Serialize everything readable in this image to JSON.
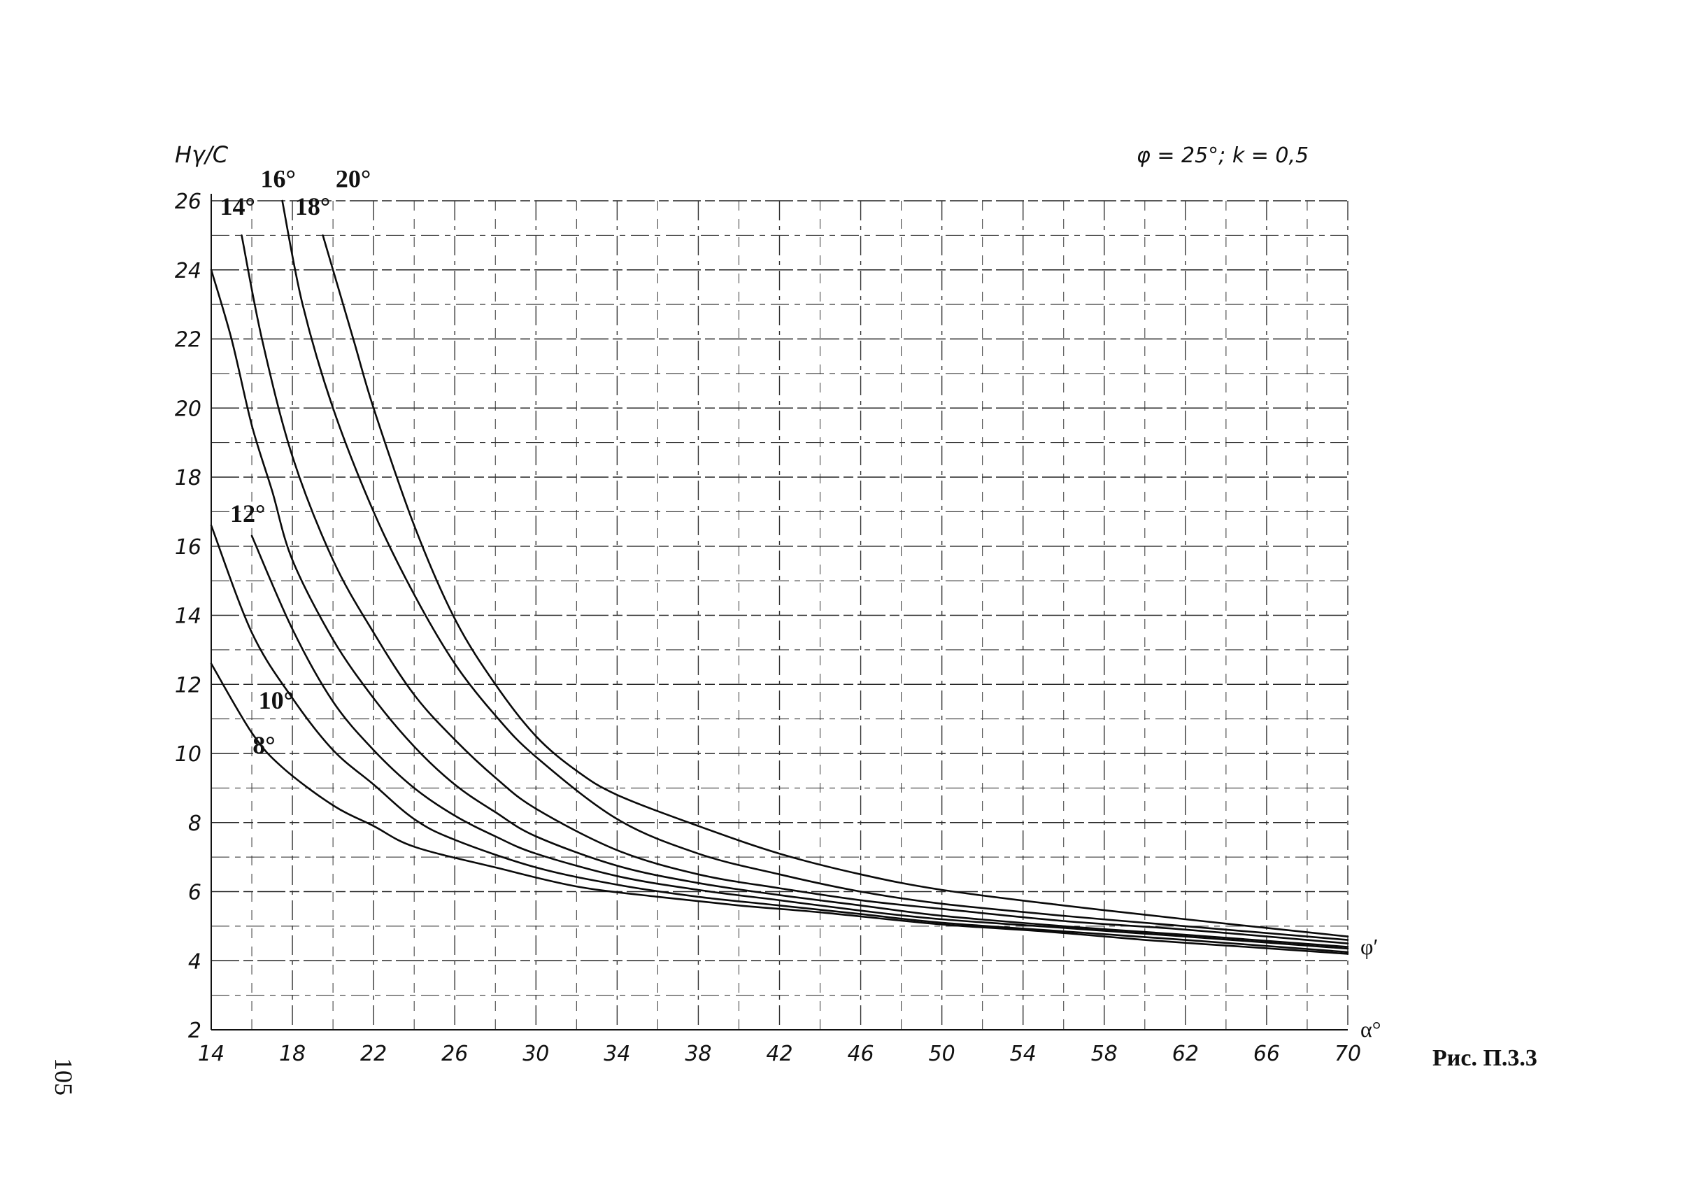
{
  "page": {
    "page_number": "105",
    "figure_caption": "Рис. П.3.3"
  },
  "chart_data": {
    "type": "line",
    "title": "",
    "params_label": "φ = 25°; k = 0,5",
    "ylabel": "Hγ/C",
    "xlabel": "α°",
    "series_axis_label": "φ′",
    "xlim": [
      14,
      70
    ],
    "ylim": [
      2,
      26
    ],
    "xticks": [
      14,
      18,
      22,
      26,
      30,
      34,
      38,
      42,
      46,
      50,
      54,
      58,
      62,
      66,
      70
    ],
    "yticks": [
      2,
      4,
      6,
      8,
      10,
      12,
      14,
      16,
      18,
      20,
      22,
      24,
      26
    ],
    "grid": true,
    "series": [
      {
        "name": "8°",
        "points": [
          [
            14,
            12.6
          ],
          [
            16,
            10.6
          ],
          [
            17.5,
            9.6
          ],
          [
            20,
            8.5
          ],
          [
            22,
            7.9
          ],
          [
            24,
            7.3
          ],
          [
            28,
            6.7
          ],
          [
            32,
            6.15
          ],
          [
            36,
            5.85
          ],
          [
            40,
            5.6
          ],
          [
            44,
            5.4
          ],
          [
            50,
            5.05
          ],
          [
            55,
            4.85
          ],
          [
            60,
            4.6
          ],
          [
            65,
            4.4
          ],
          [
            70,
            4.2
          ]
        ]
      },
      {
        "name": "10°",
        "points": [
          [
            14,
            16.6
          ],
          [
            16,
            13.5
          ],
          [
            18,
            11.6
          ],
          [
            20,
            10.1
          ],
          [
            22,
            9.1
          ],
          [
            24,
            8.1
          ],
          [
            26,
            7.5
          ],
          [
            30,
            6.7
          ],
          [
            34,
            6.2
          ],
          [
            38,
            5.85
          ],
          [
            42,
            5.6
          ],
          [
            46,
            5.35
          ],
          [
            50,
            5.1
          ],
          [
            56,
            4.85
          ],
          [
            62,
            4.6
          ],
          [
            70,
            4.25
          ]
        ]
      },
      {
        "name": "12°",
        "points": [
          [
            16,
            16.3
          ],
          [
            18,
            13.6
          ],
          [
            20,
            11.5
          ],
          [
            22,
            10.1
          ],
          [
            24,
            9.0
          ],
          [
            26,
            8.2
          ],
          [
            28,
            7.6
          ],
          [
            30,
            7.1
          ],
          [
            34,
            6.45
          ],
          [
            38,
            6.05
          ],
          [
            42,
            5.75
          ],
          [
            46,
            5.45
          ],
          [
            50,
            5.2
          ],
          [
            56,
            4.95
          ],
          [
            62,
            4.7
          ],
          [
            70,
            4.35
          ]
        ]
      },
      {
        "name": "14°",
        "points": [
          [
            14,
            24.0
          ],
          [
            15,
            22.0
          ],
          [
            16,
            19.5
          ],
          [
            17,
            17.6
          ],
          [
            18,
            15.6
          ],
          [
            20,
            13.3
          ],
          [
            22,
            11.6
          ],
          [
            24,
            10.2
          ],
          [
            26,
            9.1
          ],
          [
            28,
            8.3
          ],
          [
            30,
            7.6
          ],
          [
            34,
            6.75
          ],
          [
            38,
            6.25
          ],
          [
            42,
            5.9
          ],
          [
            46,
            5.6
          ],
          [
            50,
            5.3
          ],
          [
            56,
            5.0
          ],
          [
            62,
            4.75
          ],
          [
            70,
            4.4
          ]
        ]
      },
      {
        "name": "16°",
        "points": [
          [
            15.5,
            25.0
          ],
          [
            16.5,
            22.0
          ],
          [
            18,
            18.6
          ],
          [
            20,
            15.6
          ],
          [
            22,
            13.5
          ],
          [
            24,
            11.7
          ],
          [
            26,
            10.4
          ],
          [
            28,
            9.3
          ],
          [
            30,
            8.4
          ],
          [
            34,
            7.2
          ],
          [
            38,
            6.5
          ],
          [
            42,
            6.1
          ],
          [
            46,
            5.75
          ],
          [
            50,
            5.5
          ],
          [
            56,
            5.15
          ],
          [
            62,
            4.9
          ],
          [
            70,
            4.5
          ]
        ]
      },
      {
        "name": "18°",
        "points": [
          [
            17.5,
            26.0
          ],
          [
            18.5,
            23.0
          ],
          [
            20,
            20.0
          ],
          [
            22,
            17.0
          ],
          [
            24,
            14.6
          ],
          [
            26,
            12.6
          ],
          [
            28,
            11.1
          ],
          [
            30,
            9.9
          ],
          [
            34,
            8.1
          ],
          [
            38,
            7.1
          ],
          [
            42,
            6.5
          ],
          [
            46,
            6.0
          ],
          [
            50,
            5.65
          ],
          [
            56,
            5.3
          ],
          [
            62,
            5.0
          ],
          [
            70,
            4.6
          ]
        ]
      },
      {
        "name": "20°",
        "points": [
          [
            19.5,
            25.0
          ],
          [
            21,
            22.0
          ],
          [
            22,
            20.0
          ],
          [
            24,
            16.6
          ],
          [
            26,
            13.9
          ],
          [
            28,
            12.0
          ],
          [
            30,
            10.5
          ],
          [
            32,
            9.5
          ],
          [
            34,
            8.8
          ],
          [
            38,
            7.9
          ],
          [
            42,
            7.1
          ],
          [
            46,
            6.5
          ],
          [
            50,
            6.05
          ],
          [
            56,
            5.6
          ],
          [
            62,
            5.2
          ],
          [
            70,
            4.7
          ]
        ]
      }
    ],
    "curve_labels": [
      {
        "text": "8°",
        "x": 16.6,
        "y": 10.0
      },
      {
        "text": "10°",
        "x": 17.2,
        "y": 11.3
      },
      {
        "text": "12°",
        "x": 15.8,
        "y": 16.7
      },
      {
        "text": "14°",
        "x": 15.3,
        "y": 25.6
      },
      {
        "text": "16°",
        "x": 17.3,
        "y": 26.4
      },
      {
        "text": "18°",
        "x": 19.0,
        "y": 25.6
      },
      {
        "text": "20°",
        "x": 21.0,
        "y": 26.4
      }
    ]
  }
}
